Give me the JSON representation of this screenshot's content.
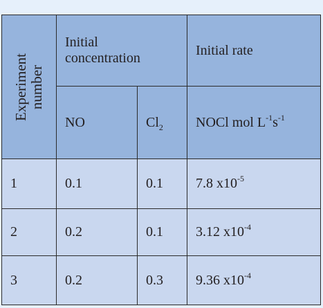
{
  "table": {
    "header": {
      "experiment_line1": "Experiment",
      "experiment_line2": "number",
      "initial_concentration_line1": "Initial",
      "initial_concentration_line2": "concentration",
      "initial_rate": "Initial rate",
      "no": "NO",
      "cl_base": "Cl",
      "cl_sub": "2",
      "unit_base": "NOCl mol L",
      "unit_sup1": "-1",
      "unit_mid": "s",
      "unit_sup2": "-1"
    },
    "rows": [
      {
        "experiment": "1",
        "no": "0.1",
        "cl2": "0.1",
        "rate_base": "7.8 x10",
        "rate_exp": "-5"
      },
      {
        "experiment": "2",
        "no": "0.2",
        "cl2": "0.1",
        "rate_base": "3.12 x10",
        "rate_exp": "-4"
      },
      {
        "experiment": "3",
        "no": "0.2",
        "cl2": "0.3",
        "rate_base": "9.36 x10",
        "rate_exp": "-4"
      }
    ],
    "colors": {
      "header_bg": "#96b4dd",
      "row_bg": "#c9d7ef",
      "page_bg": "#e6f0fb",
      "border": "#2b2b2b"
    }
  }
}
